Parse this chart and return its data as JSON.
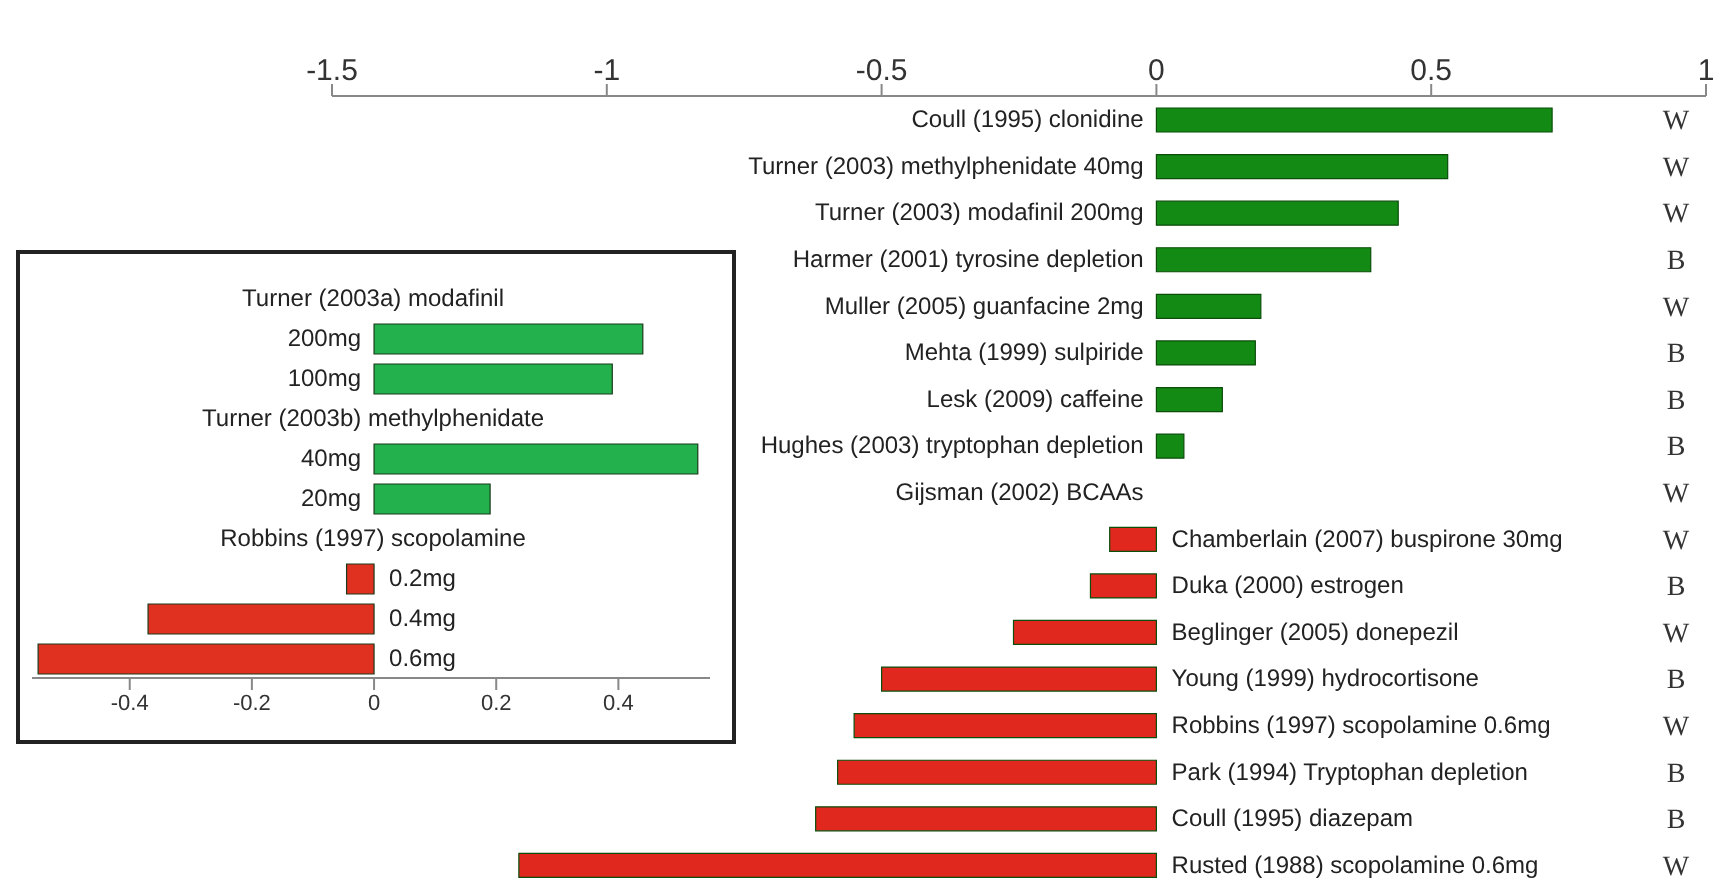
{
  "chart_data": [
    {
      "type": "bar",
      "orientation": "horizontal",
      "categories": [
        "Coull (1995) clonidine",
        "Turner (2003) methylphenidate 40mg",
        "Turner (2003) modafinil 200mg",
        "Harmer (2001) tyrosine depletion",
        "Muller (2005) guanfacine 2mg",
        "Mehta (1999) sulpiride",
        "Lesk (2009) caffeine",
        "Hughes (2003) tryptophan depletion",
        "Gijsman (2002) BCAAs",
        "Chamberlain (2007) buspirone 30mg",
        "Duka (2000) estrogen",
        "Beglinger (2005) donepezil",
        "Young (1999) hydrocortisone",
        "Robbins (1997) scopolamine 0.6mg",
        "Park (1994) Tryptophan depletion",
        "Coull (1995) diazepam",
        "Rusted (1988) scopolamine 0.6mg"
      ],
      "values": [
        0.72,
        0.53,
        0.44,
        0.39,
        0.19,
        0.18,
        0.12,
        0.05,
        0,
        -0.085,
        -0.12,
        -0.26,
        -0.5,
        -0.55,
        -0.58,
        -0.62,
        -1.16
      ],
      "colors": [
        "#138a13",
        "#138a13",
        "#138a13",
        "#138a13",
        "#138a13",
        "#138a13",
        "#138a13",
        "#138a13",
        "#138a13",
        "#e0281e",
        "#e0281e",
        "#e0281e",
        "#e0281e",
        "#e0281e",
        "#e0281e",
        "#e0281e",
        "#e0281e"
      ],
      "xlim": [
        -1.5,
        1
      ],
      "xticks": [
        -1.5,
        -1,
        -0.5,
        0,
        0.5,
        1
      ],
      "annotations": [
        "W",
        "W",
        "W",
        "B",
        "W",
        "B",
        "B",
        "B",
        "W",
        "W",
        "B",
        "W",
        "B",
        "W",
        "B",
        "B",
        "W"
      ]
    },
    {
      "type": "bar",
      "orientation": "horizontal",
      "categories": [
        "Turner (2003a) modafinil",
        "200mg",
        "100mg",
        "Turner (2003b) methylphenidate",
        "40mg",
        "20mg",
        "Robbins (1997) scopolamine",
        "0.2mg",
        "0.4mg",
        "0.6mg"
      ],
      "values": [
        null,
        0.44,
        0.39,
        null,
        0.53,
        0.19,
        null,
        -0.045,
        -0.37,
        -0.55
      ],
      "colors": [
        "#22b14c",
        "#22b14c",
        "#22b14c",
        "#22b14c",
        "#22b14c",
        "#22b14c",
        "#e03020",
        "#e03020",
        "#e03020",
        "#e03020"
      ],
      "xlim": [
        -0.56,
        0.55
      ],
      "xticks": [
        -0.4,
        -0.2,
        0,
        0.2,
        0.4
      ]
    }
  ]
}
